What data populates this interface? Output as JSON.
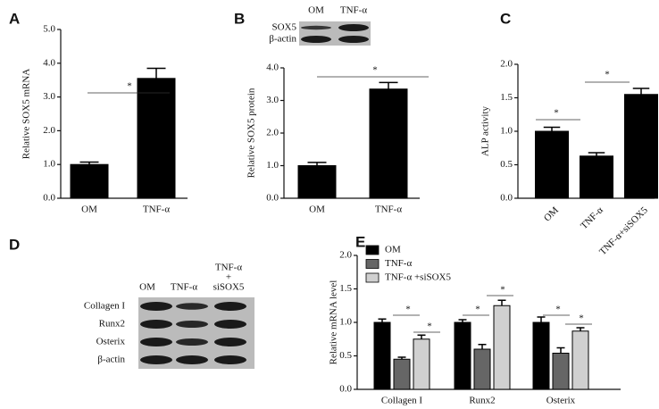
{
  "panels": [
    "A",
    "B",
    "C",
    "D",
    "E"
  ],
  "blots": [
    {
      "columns": [
        [
          "OM"
        ],
        [
          "TNF-α"
        ]
      ],
      "rows": [
        "SOX5",
        "β-actin"
      ]
    },
    {
      "columns": [
        [
          "OM"
        ],
        [
          "TNF-α"
        ],
        [
          "TNF-α",
          "+",
          "siSOX5"
        ]
      ],
      "rows": [
        "Collagen I",
        "Runx2",
        "Osterix",
        "β-actin"
      ]
    }
  ],
  "chart_data": [
    {
      "type": "bar",
      "y_label": "Relative SOX5 mRNA",
      "categories": [
        "OM",
        "TNF-α"
      ],
      "values": [
        1.0,
        3.55
      ],
      "errors": [
        0.07,
        0.3
      ],
      "color": "#000000",
      "ylim": [
        0,
        5
      ],
      "yticks": [
        {
          "value": 0,
          "label": "0.0"
        },
        {
          "value": 1,
          "label": "1.0"
        },
        {
          "value": 2,
          "label": "2.0"
        },
        {
          "value": 3,
          "label": "3.0"
        },
        {
          "value": 4,
          "label": "4.0"
        },
        {
          "value": 5,
          "label": "5.0"
        }
      ],
      "annotations": [
        "*"
      ]
    },
    {
      "type": "bar",
      "y_label": "Relative SOX5 protein",
      "categories": [
        "OM",
        "TNF-α"
      ],
      "values": [
        1.0,
        3.35
      ],
      "errors": [
        0.1,
        0.2
      ],
      "color": "#000000",
      "ylim": [
        0,
        4
      ],
      "yticks": [
        {
          "value": 0,
          "label": "0.0"
        },
        {
          "value": 1,
          "label": "1.0"
        },
        {
          "value": 2,
          "label": "2.0"
        },
        {
          "value": 3,
          "label": "3.0"
        },
        {
          "value": 4,
          "label": "4.0"
        }
      ],
      "annotations": [
        "*"
      ]
    },
    {
      "type": "bar",
      "y_label": "ALP activity",
      "categories": [
        "OM",
        "TNF-α",
        "TNF-α+siSOX5"
      ],
      "values": [
        1.0,
        0.63,
        1.55
      ],
      "errors": [
        0.06,
        0.05,
        0.09
      ],
      "color": "#000000",
      "ylim": [
        0,
        2
      ],
      "yticks": [
        {
          "value": 0,
          "label": "0.0"
        },
        0.5,
        {
          "value": 1,
          "label": "1.0"
        },
        1.5,
        {
          "value": 2,
          "label": "2.0"
        }
      ],
      "annotations": [
        "*",
        "*"
      ]
    },
    {
      "type": "bar",
      "y_label": "Relative mRNA level",
      "categories": [
        "Collagen I",
        "Runx2",
        "Osterix"
      ],
      "series": [
        {
          "name": "OM",
          "color": "#000000",
          "values": [
            1.0,
            1.0,
            1.0
          ],
          "errors": [
            0.05,
            0.04,
            0.08
          ]
        },
        {
          "name": "TNF-α",
          "color": "#666666",
          "values": [
            0.45,
            0.6,
            0.54
          ],
          "errors": [
            0.03,
            0.07,
            0.08
          ]
        },
        {
          "name": "TNF-α +siSOX5",
          "color": "#d0d0d0",
          "values": [
            0.75,
            1.25,
            0.87
          ],
          "errors": [
            0.06,
            0.08,
            0.05
          ]
        }
      ],
      "ylim": [
        0,
        2
      ],
      "yticks": [
        {
          "value": 0,
          "label": "0.0"
        },
        0.5,
        {
          "value": 1,
          "label": "1.0"
        },
        1.5,
        {
          "value": 2,
          "label": "2.0"
        }
      ],
      "legend": "top-left",
      "annotations": [
        "*",
        "*",
        "*",
        "*",
        "*",
        "*"
      ]
    }
  ]
}
